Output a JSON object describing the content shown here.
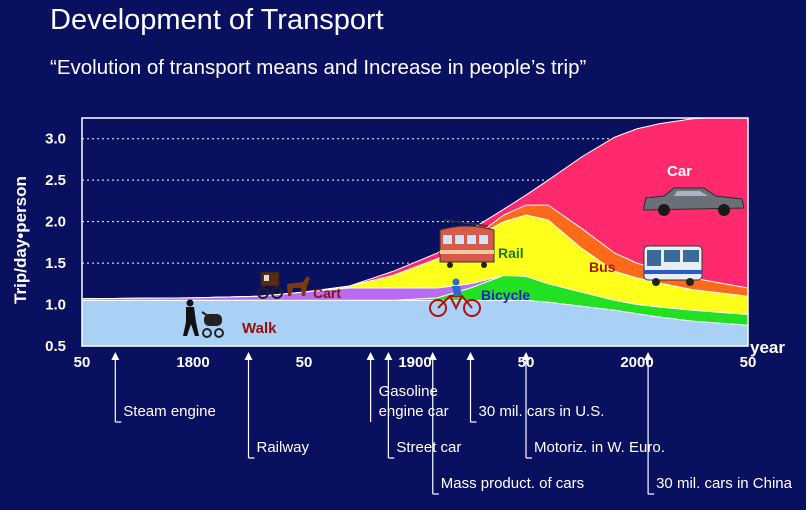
{
  "slide": {
    "title": "Development of Transport",
    "subtitle": "“Evolution of transport means and Increase in people’s trip”"
  },
  "colors": {
    "background": "#0a1060",
    "plot_background": "#0a1060",
    "axis_frame": "#ffffff",
    "walk": "#a9d0f5",
    "cart": "#b86cf0",
    "bicycle": "#22e022",
    "rail": "#ffff1c",
    "bus": "#ff6a1a",
    "car": "#ff2a6e",
    "area_edge": "#ffffff",
    "walk_text": "#9a0a0a",
    "bicycle_text": "#1f1fd0",
    "rail_text": "#1a7a1a",
    "bus_text": "#b01010",
    "car_text": "#ffffff",
    "cart_text": "#8a1010"
  },
  "chart_data": {
    "type": "area",
    "ylabel": "Trip/day•person",
    "xlabel": "year",
    "ylim": [
      0.5,
      3.25
    ],
    "xlim": [
      1750,
      2050
    ],
    "grid": "horizontal dotted",
    "yticks": [
      {
        "value": 0.5,
        "label": "0.5"
      },
      {
        "value": 1.0,
        "label": "1.0"
      },
      {
        "value": 1.5,
        "label": "1.5"
      },
      {
        "value": 2.0,
        "label": "2.0"
      },
      {
        "value": 2.5,
        "label": "2.5"
      },
      {
        "value": 3.0,
        "label": "3.0"
      }
    ],
    "xticks": [
      {
        "value": 1750,
        "label": "50"
      },
      {
        "value": 1800,
        "label": "1800"
      },
      {
        "value": 1850,
        "label": "50"
      },
      {
        "value": 1900,
        "label": "1900"
      },
      {
        "value": 1950,
        "label": "50"
      },
      {
        "value": 2000,
        "label": "2000"
      },
      {
        "value": 2050,
        "label": "50"
      }
    ],
    "x": [
      1750,
      1800,
      1830,
      1850,
      1870,
      1890,
      1910,
      1925,
      1940,
      1950,
      1960,
      1975,
      1990,
      2000,
      2010,
      2025,
      2050
    ],
    "series": [
      {
        "name": "Walk",
        "cumulative": [
          1.05,
          1.05,
          1.05,
          1.05,
          1.05,
          1.05,
          1.05,
          1.05,
          1.05,
          1.05,
          1.03,
          0.98,
          0.93,
          0.89,
          0.85,
          0.8,
          0.75
        ]
      },
      {
        "name": "Bicycle",
        "cumulative": [
          1.05,
          1.05,
          1.05,
          1.05,
          1.05,
          1.05,
          1.08,
          1.2,
          1.35,
          1.34,
          1.25,
          1.15,
          1.05,
          1.0,
          0.97,
          0.93,
          0.88
        ]
      },
      {
        "name": "Cart",
        "cumulative": [
          1.07,
          1.08,
          1.1,
          1.15,
          1.2,
          1.2,
          1.2,
          1.25,
          1.35,
          1.34,
          1.25,
          1.15,
          1.05,
          1.0,
          0.97,
          0.93,
          0.88
        ]
      },
      {
        "name": "Rail",
        "cumulative": [
          1.07,
          1.08,
          1.1,
          1.15,
          1.22,
          1.35,
          1.55,
          1.78,
          2.0,
          2.08,
          2.02,
          1.68,
          1.4,
          1.32,
          1.26,
          1.18,
          1.1
        ]
      },
      {
        "name": "Bus",
        "cumulative": [
          1.07,
          1.08,
          1.1,
          1.15,
          1.22,
          1.35,
          1.55,
          1.78,
          2.08,
          2.2,
          2.2,
          1.92,
          1.62,
          1.5,
          1.42,
          1.32,
          1.2
        ]
      },
      {
        "name": "Car",
        "cumulative": [
          1.07,
          1.08,
          1.1,
          1.15,
          1.22,
          1.4,
          1.62,
          1.9,
          2.15,
          2.32,
          2.5,
          2.78,
          3.02,
          3.12,
          3.18,
          3.24,
          3.28
        ]
      }
    ],
    "annotations": [
      {
        "text": "Steam engine",
        "year": 1765,
        "row": 1
      },
      {
        "text": "Railway",
        "year": 1825,
        "row": 2
      },
      {
        "text": "Gasoline",
        "year": 1880,
        "row": 0
      },
      {
        "text": "engine car",
        "year": 1880,
        "row": 1
      },
      {
        "text": "Street car",
        "year": 1888,
        "row": 2
      },
      {
        "text": "Mass product. of cars",
        "year": 1908,
        "row": 3
      },
      {
        "text": "30 mil. cars in U.S.",
        "year": 1925,
        "row": 1
      },
      {
        "text": "Motoriz. in W. Euro.",
        "year": 1950,
        "row": 2
      },
      {
        "text": "30 mil. cars in China",
        "year": 2005,
        "row": 3
      }
    ]
  }
}
